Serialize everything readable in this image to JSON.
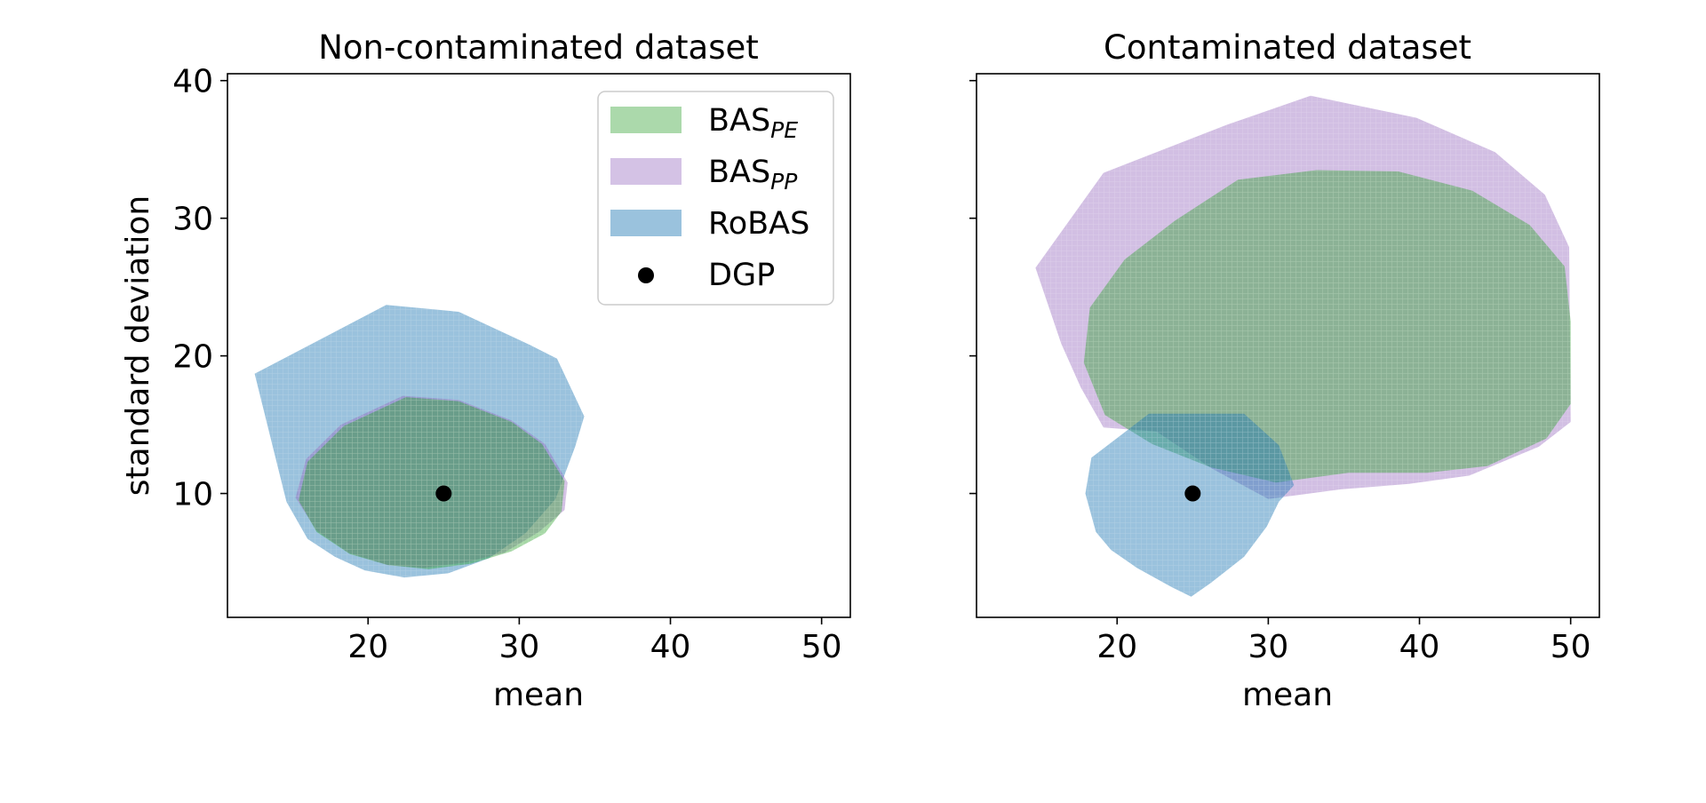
{
  "chart_data": [
    {
      "type": "scatter",
      "title": "Non-contaminated dataset",
      "xlabel": "mean",
      "ylabel": "standard deviation",
      "xlim": [
        10.7,
        51.9
      ],
      "ylim": [
        1.0,
        40.5
      ],
      "xticks": [
        "20",
        "30",
        "40",
        "50"
      ],
      "yticks": [
        "10",
        "20",
        "30",
        "40"
      ],
      "series": [
        {
          "name": "RoBAS",
          "kind": "region",
          "color": "#1f77b4",
          "hull": [
            [
              12.5,
              18.7
            ],
            [
              21.2,
              23.7
            ],
            [
              26,
              23.2
            ],
            [
              30.7,
              20.8
            ],
            [
              32.5,
              19.8
            ],
            [
              34.3,
              15.6
            ],
            [
              33.7,
              13.4
            ],
            [
              32.4,
              9.6
            ],
            [
              30.4,
              7.1
            ],
            [
              28,
              5.3
            ],
            [
              25.3,
              4.2
            ],
            [
              22.4,
              3.9
            ],
            [
              19.8,
              4.4
            ],
            [
              17.8,
              5.4
            ],
            [
              16,
              6.7
            ],
            [
              14.6,
              9.4
            ]
          ]
        },
        {
          "name": "BAS_PP",
          "kind": "region",
          "color": "#9467bd",
          "hull": [
            [
              22.3,
              17.1
            ],
            [
              26,
              16.8
            ],
            [
              29.5,
              15.3
            ],
            [
              31.7,
              13.6
            ],
            [
              33.2,
              10.8
            ],
            [
              33,
              8.8
            ],
            [
              31.3,
              7.2
            ],
            [
              29,
              5.7
            ],
            [
              26.5,
              5
            ],
            [
              23.7,
              4.6
            ],
            [
              21.3,
              4.8
            ],
            [
              18.7,
              5.7
            ],
            [
              16.6,
              7.3
            ],
            [
              15.2,
              9.7
            ],
            [
              15.9,
              12.5
            ],
            [
              18.2,
              15
            ]
          ]
        },
        {
          "name": "BAS_PE",
          "kind": "region",
          "color": "#2ca02c",
          "hull": [
            [
              22.5,
              17
            ],
            [
              26,
              16.7
            ],
            [
              29.5,
              15.2
            ],
            [
              31.5,
              13.6
            ],
            [
              33,
              10.9
            ],
            [
              32.8,
              8.7
            ],
            [
              31.7,
              7.1
            ],
            [
              29.5,
              5.8
            ],
            [
              26.8,
              4.9
            ],
            [
              24,
              4.5
            ],
            [
              21.3,
              4.8
            ],
            [
              18.8,
              5.6
            ],
            [
              16.6,
              7.2
            ],
            [
              15.4,
              9.5
            ],
            [
              16,
              12.3
            ],
            [
              18.4,
              14.9
            ]
          ]
        },
        {
          "name": "DGP",
          "kind": "point",
          "color": "#000000",
          "points": [
            [
              25,
              10
            ]
          ]
        }
      ],
      "legend": {
        "location": "upper-right",
        "entries": [
          {
            "label": "BAS",
            "subscript": "PE",
            "color": "#2ca02c"
          },
          {
            "label": "BAS",
            "subscript": "PP",
            "color": "#9467bd"
          },
          {
            "label": "RoBAS",
            "subscript": "",
            "color": "#1f77b4"
          },
          {
            "label": "DGP",
            "subscript": "",
            "color": "#000000"
          }
        ]
      }
    },
    {
      "type": "scatter",
      "title": "Contaminated dataset",
      "xlabel": "mean",
      "ylabel": "",
      "xlim": [
        10.7,
        51.9
      ],
      "ylim": [
        1.0,
        40.5
      ],
      "xticks": [
        "20",
        "30",
        "40",
        "50"
      ],
      "yticks": [
        "10",
        "20",
        "30",
        "40"
      ],
      "series": [
        {
          "name": "BAS_PP",
          "kind": "region",
          "color": "#9467bd",
          "hull": [
            [
              14.6,
              26.4
            ],
            [
              19.1,
              33.3
            ],
            [
              27.3,
              36.8
            ],
            [
              32.8,
              38.9
            ],
            [
              39.8,
              37.3
            ],
            [
              45,
              34.8
            ],
            [
              48.3,
              31.7
            ],
            [
              49.9,
              27.9
            ],
            [
              50,
              15.2
            ],
            [
              47.9,
              13.4
            ],
            [
              43.3,
              11.3
            ],
            [
              39.3,
              10.7
            ],
            [
              34.8,
              10.3
            ],
            [
              30,
              9.6
            ],
            [
              26.3,
              11.8
            ],
            [
              22.6,
              14.5
            ],
            [
              19.1,
              14.8
            ],
            [
              17.6,
              17.7
            ],
            [
              16.3,
              20.9
            ]
          ]
        },
        {
          "name": "BAS_PE",
          "kind": "region",
          "color": "#2ca02c",
          "hull": [
            [
              23.8,
              29.8
            ],
            [
              28,
              32.8
            ],
            [
              33.2,
              33.5
            ],
            [
              38.6,
              33.4
            ],
            [
              43.5,
              32
            ],
            [
              47.3,
              29.5
            ],
            [
              49.6,
              26.5
            ],
            [
              50,
              22.5
            ],
            [
              50,
              16.5
            ],
            [
              48.4,
              14
            ],
            [
              44.5,
              12
            ],
            [
              40.5,
              11.5
            ],
            [
              35.3,
              11.5
            ],
            [
              30.5,
              10.8
            ],
            [
              26.2,
              11.9
            ],
            [
              22.3,
              13.6
            ],
            [
              19.2,
              15.7
            ],
            [
              17.8,
              19.5
            ],
            [
              18.2,
              23.5
            ],
            [
              20.5,
              27
            ]
          ]
        },
        {
          "name": "RoBAS",
          "kind": "region",
          "color": "#1f77b4",
          "hull": [
            [
              18.3,
              12.6
            ],
            [
              22.1,
              15.8
            ],
            [
              28.4,
              15.8
            ],
            [
              30.7,
              13.5
            ],
            [
              31.7,
              10.6
            ],
            [
              30.7,
              9.4
            ],
            [
              29.9,
              7.6
            ],
            [
              28.4,
              5.4
            ],
            [
              26.2,
              3.5
            ],
            [
              24.9,
              2.5
            ],
            [
              23.6,
              3.2
            ],
            [
              21.3,
              4.6
            ],
            [
              19.6,
              5.9
            ],
            [
              18.6,
              7.2
            ],
            [
              17.9,
              10
            ]
          ]
        },
        {
          "name": "DGP",
          "kind": "point",
          "color": "#000000",
          "points": [
            [
              25,
              10
            ]
          ]
        }
      ]
    }
  ]
}
